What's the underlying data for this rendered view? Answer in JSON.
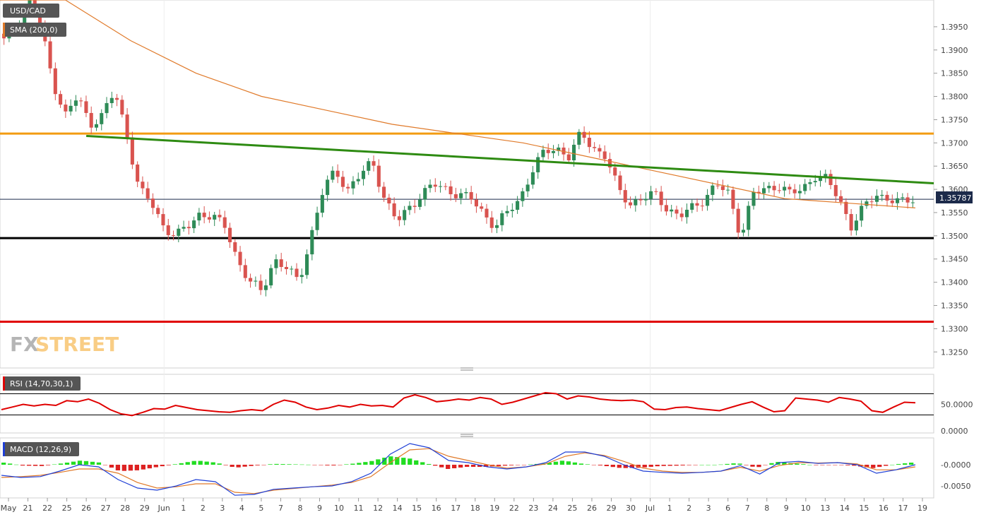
{
  "labels": {
    "symbol": "USD/CAD",
    "sma": "SMA (200,0)",
    "rsi": "RSI (14,70,30,1)",
    "macd": "MACD (12,26,9)",
    "price_tag": "1.35787",
    "logo_fx": "FX",
    "logo_street": "STREET"
  },
  "colors": {
    "up": "#2e8b57",
    "down": "#d9534f",
    "sma": "#e07a2a",
    "orange_level": "#f39c12",
    "black_level": "#000000",
    "red_level": "#e00000",
    "trendline": "#2e8b12",
    "rsi": "#e00000",
    "macd_line": "#1f3fd6",
    "signal_line": "#e07a2a",
    "hist_pos": "#22dd22",
    "hist_neg": "#dd2222",
    "price_tag_bg": "#1c2a4a"
  },
  "chart_data": [
    {
      "type": "candlestick",
      "title": "USD/CAD",
      "ylim": [
        1.322,
        1.4
      ],
      "y_ticks": [
        "1.3950",
        "1.3900",
        "1.3850",
        "1.3800",
        "1.3750",
        "1.3700",
        "1.3650",
        "1.3600",
        "1.3550",
        "1.3500",
        "1.3450",
        "1.3400",
        "1.3350",
        "1.3300",
        "1.3250"
      ],
      "x_ticks": [
        "May",
        "21",
        "22",
        "25",
        "26",
        "27",
        "28",
        "29",
        "Jun",
        "1",
        "2",
        "3",
        "4",
        "5",
        "7",
        "8",
        "9",
        "10",
        "11",
        "12",
        "14",
        "15",
        "16",
        "17",
        "18",
        "19",
        "22",
        "23",
        "24",
        "25",
        "26",
        "29",
        "30",
        "Jul",
        "1",
        "2",
        "3",
        "6",
        "7",
        "8",
        "9",
        "10",
        "13",
        "14",
        "15",
        "16",
        "17",
        "19"
      ],
      "last_price": 1.35787,
      "levels": [
        {
          "name": "resistance",
          "value": 1.372
        },
        {
          "name": "support",
          "value": 1.3495
        },
        {
          "name": "low",
          "value": 1.3315
        }
      ],
      "trendline": {
        "from": {
          "date": "Jun 26",
          "value": 1.3715
        },
        "to": {
          "date": "Jul 19",
          "value": 1.3613
        }
      },
      "close_path": [
        1.392,
        1.395,
        1.401,
        1.395,
        1.383,
        1.376,
        1.38,
        1.374,
        1.376,
        1.381,
        1.372,
        1.36,
        1.357,
        1.352,
        1.35,
        1.352,
        1.355,
        1.354,
        1.352,
        1.345,
        1.34,
        1.338,
        1.345,
        1.343,
        1.34,
        1.35,
        1.36,
        1.364,
        1.36,
        1.363,
        1.366,
        1.358,
        1.353,
        1.356,
        1.359,
        1.361,
        1.36,
        1.359,
        1.358,
        1.355,
        1.352,
        1.355,
        1.358,
        1.364,
        1.368,
        1.369,
        1.367,
        1.372,
        1.369,
        1.367,
        1.36,
        1.357,
        1.358,
        1.359,
        1.356,
        1.354,
        1.356,
        1.358,
        1.361,
        1.359,
        1.35,
        1.359,
        1.36,
        1.361,
        1.359,
        1.36,
        1.363,
        1.362,
        1.358,
        1.352,
        1.356,
        1.359,
        1.358,
        1.357,
        1.358
      ],
      "sma_path": [
        1.415,
        1.402,
        1.392,
        1.385,
        1.38,
        1.377,
        1.374,
        1.372,
        1.37,
        1.367,
        1.364,
        1.361,
        1.358,
        1.357,
        1.356
      ]
    },
    {
      "type": "line",
      "title": "RSI (14,70,30,1)",
      "ylim": [
        0,
        100
      ],
      "y_ticks": [
        "50.0000",
        "0.0000"
      ],
      "bands": [
        30,
        70
      ],
      "values": [
        40,
        45,
        50,
        47,
        50,
        48,
        57,
        55,
        60,
        52,
        40,
        32,
        29,
        35,
        42,
        41,
        48,
        44,
        40,
        38,
        36,
        35,
        38,
        40,
        38,
        50,
        58,
        54,
        45,
        40,
        43,
        48,
        45,
        50,
        47,
        48,
        45,
        62,
        68,
        63,
        55,
        57,
        60,
        58,
        63,
        60,
        50,
        54,
        60,
        66,
        72,
        70,
        60,
        66,
        64,
        60,
        58,
        57,
        58,
        55,
        41,
        40,
        44,
        45,
        42,
        40,
        38,
        44,
        50,
        55,
        45,
        36,
        38,
        62,
        60,
        58,
        54,
        63,
        60,
        56,
        38,
        35,
        45,
        54,
        53
      ]
    },
    {
      "type": "bar_line",
      "title": "MACD (12,26,9)",
      "ylim": [
        -0.0075,
        0.006
      ],
      "y_ticks": [
        "-0.0000",
        "-0.0050"
      ],
      "macd": [
        -0.0025,
        -0.003,
        -0.0028,
        -0.0015,
        0.0,
        -0.0005,
        -0.0035,
        -0.0055,
        -0.006,
        -0.005,
        -0.0035,
        -0.004,
        -0.0072,
        -0.007,
        -0.0058,
        -0.0055,
        -0.0052,
        -0.005,
        -0.004,
        -0.002,
        0.0025,
        0.005,
        0.004,
        0.001,
        0.0005,
        -0.0005,
        -0.001,
        -0.0005,
        0.0005,
        0.003,
        0.003,
        0.002,
        0.0,
        -0.0015,
        -0.0018,
        -0.002,
        -0.0018,
        -0.0015,
        -0.0002,
        -0.0022,
        0.0005,
        0.0008,
        0.0003,
        0.0005,
        0.0,
        -0.002,
        -0.0012,
        0.0
      ],
      "signal": [
        -0.003,
        -0.0028,
        -0.0025,
        -0.0018,
        -0.001,
        -0.001,
        -0.002,
        -0.0042,
        -0.0055,
        -0.0052,
        -0.0045,
        -0.0045,
        -0.0065,
        -0.0068,
        -0.006,
        -0.0056,
        -0.0052,
        -0.0048,
        -0.0042,
        -0.0028,
        0.0005,
        0.0035,
        0.0038,
        0.002,
        0.001,
        0.0,
        -0.0008,
        -0.0005,
        0.0002,
        0.002,
        0.0028,
        0.0022,
        0.0008,
        -0.0008,
        -0.0015,
        -0.0018,
        -0.0018,
        -0.0015,
        -0.0006,
        -0.0015,
        -0.0002,
        0.0005,
        0.0004,
        0.0005,
        0.0002,
        -0.0012,
        -0.0012,
        -0.0005
      ],
      "histogram": [
        0.0005,
        -0.0002,
        -0.0003,
        0.0003,
        0.001,
        0.0005,
        -0.0015,
        -0.0013,
        -0.0005,
        0.0002,
        0.001,
        0.0005,
        -0.0007,
        -0.0002,
        0.0002,
        0.0001,
        0.0,
        -0.0002,
        0.0002,
        0.0008,
        0.002,
        0.0015,
        0.0002,
        -0.001,
        -0.0005,
        -0.0005,
        -0.0002,
        0.0,
        0.0003,
        0.001,
        0.0002,
        -0.0002,
        -0.0008,
        -0.0007,
        -0.0003,
        -0.0002,
        0.0,
        0.0,
        0.0004,
        -0.0007,
        0.0007,
        0.0003,
        -0.0001,
        0.0,
        -0.0002,
        -0.0008,
        0.0,
        0.0005
      ]
    }
  ]
}
